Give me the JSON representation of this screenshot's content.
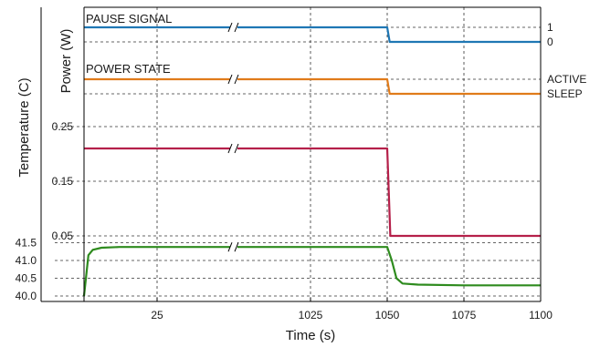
{
  "chart_data": {
    "type": "line",
    "xlabel": "Time (s)",
    "ylabel_temperature": "Temperature (C)",
    "ylabel_power": "Power (W)",
    "x_ticks": [
      "25",
      "1025",
      "1050",
      "1075",
      "1100"
    ],
    "x_tick_values": [
      25,
      1025,
      1050,
      1075,
      1100
    ],
    "axis_break": "between 25 and 1025",
    "grid": true,
    "panels": [
      {
        "id": "pause",
        "label": "PAUSE SIGNAL",
        "color": "#1f77b4",
        "right_ticks": [
          "1",
          "0"
        ],
        "right_tick_values": [
          1,
          0
        ],
        "series": [
          {
            "x": 0,
            "y": 1
          },
          {
            "x": 1050,
            "y": 1
          },
          {
            "x": 1050.8,
            "y": 0
          },
          {
            "x": 1100,
            "y": 0
          }
        ]
      },
      {
        "id": "state",
        "label": "POWER STATE",
        "color": "#e07b1a",
        "right_ticks": [
          "ACTIVE",
          "SLEEP"
        ],
        "right_tick_values": [
          1,
          0
        ],
        "series": [
          {
            "x": 0,
            "y": 1
          },
          {
            "x": 1050,
            "y": 1
          },
          {
            "x": 1050.8,
            "y": 0
          },
          {
            "x": 1100,
            "y": 0
          }
        ]
      },
      {
        "id": "power",
        "color": "#b5204a",
        "yticks": [
          "0.25",
          "0.15",
          "0.05"
        ],
        "ytick_values": [
          0.25,
          0.15,
          0.05
        ],
        "ylim": [
          0.05,
          0.25
        ],
        "series": [
          {
            "x": 0,
            "y": 0.21
          },
          {
            "x": 1050,
            "y": 0.21
          },
          {
            "x": 1050.4,
            "y": 0.15
          },
          {
            "x": 1051,
            "y": 0.05
          },
          {
            "x": 1100,
            "y": 0.05
          }
        ]
      },
      {
        "id": "temp",
        "color": "#2e8b1e",
        "yticks": [
          "41.5",
          "41.0",
          "40.5",
          "40.0"
        ],
        "ytick_values": [
          41.5,
          41.0,
          40.5,
          40.0
        ],
        "ylim": [
          40.0,
          41.5
        ],
        "series": [
          {
            "x": 0,
            "y": 40.0
          },
          {
            "x": 1.5,
            "y": 41.15
          },
          {
            "x": 3,
            "y": 41.3
          },
          {
            "x": 6,
            "y": 41.36
          },
          {
            "x": 12,
            "y": 41.38
          },
          {
            "x": 25,
            "y": 41.38
          },
          {
            "x": 1025,
            "y": 41.38
          },
          {
            "x": 1050,
            "y": 41.38
          },
          {
            "x": 1051.5,
            "y": 41.0
          },
          {
            "x": 1053,
            "y": 40.5
          },
          {
            "x": 1055,
            "y": 40.35
          },
          {
            "x": 1060,
            "y": 40.32
          },
          {
            "x": 1075,
            "y": 40.3
          },
          {
            "x": 1100,
            "y": 40.3
          }
        ]
      }
    ]
  }
}
